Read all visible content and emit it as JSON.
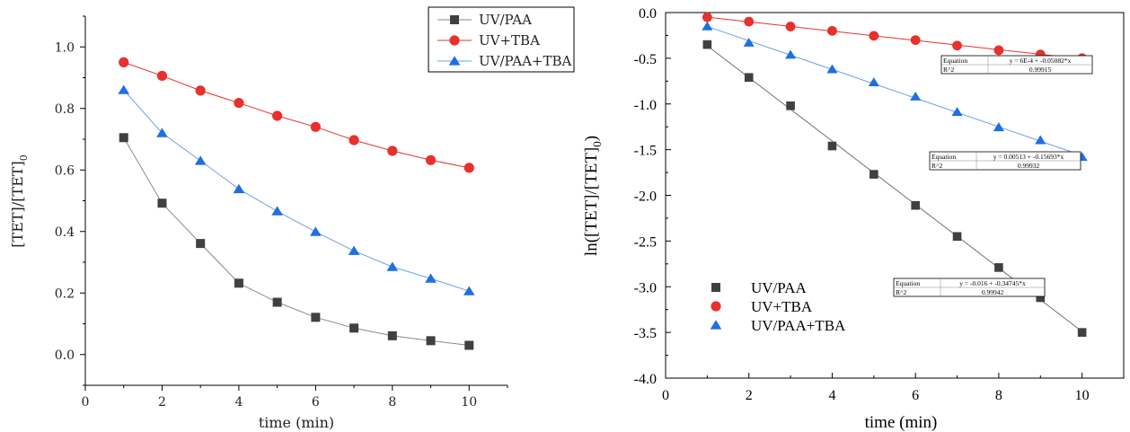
{
  "chart_data": [
    {
      "type": "line",
      "title": "",
      "xlabel": "time (min)",
      "ylabel_main": "[TET]/[TET]",
      "ylabel_sub": "0",
      "xlim": [
        0,
        11
      ],
      "ylim": [
        -0.1,
        1.1
      ],
      "xticks": [
        0,
        2,
        4,
        6,
        8,
        10
      ],
      "yticks": [
        0.0,
        0.2,
        0.4,
        0.6,
        0.8,
        1.0
      ],
      "xtick_labels": [
        "0",
        "2",
        "4",
        "6",
        "8",
        "10"
      ],
      "ytick_labels": [
        "0.0",
        "0.2",
        "0.4",
        "0.6",
        "0.8",
        "1.0"
      ],
      "legend_position": "top-right",
      "grid": false,
      "x": [
        1,
        2,
        3,
        4,
        5,
        6,
        7,
        8,
        9,
        10
      ],
      "series": [
        {
          "name": "UV/PAA",
          "marker": "square",
          "color": "#404040",
          "line_color": "#8a8a8a",
          "values": [
            0.705,
            0.492,
            0.361,
            0.232,
            0.17,
            0.121,
            0.086,
            0.061,
            0.045,
            0.03
          ]
        },
        {
          "name": "UV+TBA",
          "marker": "circle",
          "color": "#e8302c",
          "line_color": "#e8302c",
          "values": [
            0.95,
            0.906,
            0.858,
            0.818,
            0.776,
            0.74,
            0.697,
            0.662,
            0.632,
            0.607
          ]
        },
        {
          "name": "UV/PAA+TBA",
          "marker": "triangle",
          "color": "#1f6fe0",
          "line_color": "#6aa0ea",
          "values": [
            0.86,
            0.72,
            0.63,
            0.538,
            0.466,
            0.399,
            0.337,
            0.285,
            0.247,
            0.206
          ]
        }
      ]
    },
    {
      "type": "scatter",
      "title": "",
      "xlabel": "time (min)",
      "ylabel_main": "ln([TET]/[TET]",
      "ylabel_sub": "0",
      "ylabel_close": ")",
      "xlim": [
        0,
        11
      ],
      "ylim": [
        -4.0,
        0.0
      ],
      "xticks": [
        0,
        2,
        4,
        6,
        8,
        10
      ],
      "yticks": [
        0.0,
        -0.5,
        -1.0,
        -1.5,
        -2.0,
        -2.5,
        -3.0,
        -3.5,
        -4.0
      ],
      "xtick_labels": [
        "0",
        "2",
        "4",
        "6",
        "8",
        "10"
      ],
      "ytick_labels": [
        "0.0",
        "-0.5",
        "-1.0",
        "-1.5",
        "-2.0",
        "-2.5",
        "-3.0",
        "-3.5",
        "-4.0"
      ],
      "legend_position": "bottom-left",
      "grid": false,
      "x": [
        1,
        2,
        3,
        4,
        5,
        6,
        7,
        8,
        9,
        10
      ],
      "series": [
        {
          "name": "UV/PAA",
          "marker": "square",
          "color": "#404040",
          "line_color": "#707070",
          "values": [
            -0.35,
            -0.71,
            -1.02,
            -1.46,
            -1.77,
            -2.11,
            -2.45,
            -2.79,
            -3.12,
            -3.5
          ],
          "fit": {
            "intercept": -0.016,
            "slope": -0.34745
          }
        },
        {
          "name": "UV+TBA",
          "marker": "circle",
          "color": "#e8302c",
          "line_color": "#e8302c",
          "values": [
            -0.051,
            -0.099,
            -0.153,
            -0.2,
            -0.254,
            -0.301,
            -0.361,
            -0.412,
            -0.459,
            -0.499
          ],
          "fit": {
            "intercept": 0.0006,
            "slope": -0.05082
          }
        },
        {
          "name": "UV/PAA+TBA",
          "marker": "triangle",
          "color": "#1f6fe0",
          "line_color": "#6aa0ea",
          "values": [
            -0.151,
            -0.329,
            -0.462,
            -0.62,
            -0.763,
            -0.919,
            -1.088,
            -1.255,
            -1.396,
            -1.58
          ],
          "fit": {
            "intercept": 0.00513,
            "slope": -0.15693
          }
        }
      ],
      "equation_boxes": [
        {
          "series": "UV+TBA",
          "label_eq": "Equation",
          "eq": "y = 6E-4 + -0.05082*x",
          "label_r2": "R^2",
          "r2": "0.99915"
        },
        {
          "series": "UV/PAA+TBA",
          "label_eq": "Equation",
          "eq": "y = 0.00513 + -0.15693*x",
          "label_r2": "R^2",
          "r2": "0.99932"
        },
        {
          "series": "UV/PAA",
          "label_eq": "Equation",
          "eq": "y = -0.016 + -0.34745*x",
          "label_r2": "R^2",
          "r2": "0.99942"
        }
      ]
    }
  ]
}
